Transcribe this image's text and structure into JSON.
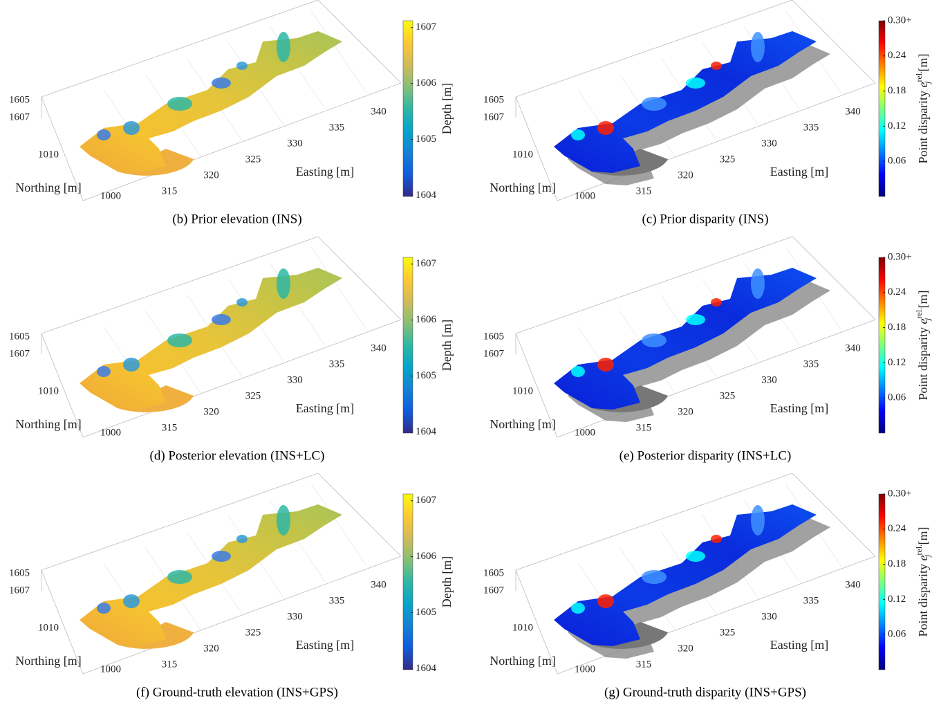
{
  "panels": [
    {
      "caption": "(b) Prior elevation (INS)",
      "colormap": "parula",
      "easting_label": "Easting [m]",
      "northing_label": "Northing [m]",
      "easting_ticks": [
        315,
        320,
        325,
        330,
        335,
        340
      ],
      "northing_ticks": [
        1000,
        1010
      ],
      "depth_ticks": [
        1605,
        1607
      ],
      "colorbar": {
        "label": "Depth",
        "unit": "[m]",
        "lim": [
          1603.98,
          1607.12
        ],
        "ticks": [
          1604,
          1605,
          1606,
          1607
        ]
      }
    },
    {
      "caption": "(c) Prior disparity (INS)",
      "colormap": "jet",
      "easting_label": "Easting [m]",
      "northing_label": "Northing [m]",
      "easting_ticks": [
        315,
        320,
        325,
        330,
        335,
        340
      ],
      "northing_ticks": [
        1000,
        1010
      ],
      "depth_ticks": [
        1605,
        1607
      ],
      "colorbar": {
        "label": "Point disparity",
        "symbol": "e",
        "symbol_sub": "j",
        "symbol_sup": "rel.",
        "unit": "[m]",
        "lim": [
          0,
          0.3
        ],
        "ticks": [
          0.06,
          0.12,
          0.18,
          0.24,
          {
            "value": 0.3,
            "label": "0.30+"
          }
        ]
      }
    },
    {
      "caption": "(d) Posterior elevation (INS+LC)",
      "colormap": "parula",
      "easting_label": "Easting [m]",
      "northing_label": "Northing [m]",
      "easting_ticks": [
        315,
        320,
        325,
        330,
        335,
        340
      ],
      "northing_ticks": [
        1000,
        1010
      ],
      "depth_ticks": [
        1605,
        1607
      ],
      "colorbar": {
        "label": "Depth",
        "unit": "[m]",
        "lim": [
          1603.98,
          1607.12
        ],
        "ticks": [
          1604,
          1605,
          1606,
          1607
        ]
      }
    },
    {
      "caption": "(e) Posterior disparity (INS+LC)",
      "colormap": "jet",
      "easting_label": "Easting [m]",
      "northing_label": "Northing [m]",
      "easting_ticks": [
        315,
        320,
        325,
        330,
        335,
        340
      ],
      "northing_ticks": [
        1000,
        1010
      ],
      "depth_ticks": [
        1605,
        1607
      ],
      "colorbar": {
        "label": "Point disparity",
        "symbol": "e",
        "symbol_sub": "j",
        "symbol_sup": "rel.",
        "unit": "[m]",
        "lim": [
          0,
          0.3
        ],
        "ticks": [
          0.06,
          0.12,
          0.18,
          0.24,
          {
            "value": 0.3,
            "label": "0.30+"
          }
        ]
      }
    },
    {
      "caption": "(f) Ground-truth elevation (INS+GPS)",
      "colormap": "parula",
      "easting_label": "Easting [m]",
      "northing_label": "Northing [m]",
      "easting_ticks": [
        315,
        320,
        325,
        330,
        335,
        340
      ],
      "northing_ticks": [
        1000,
        1010
      ],
      "depth_ticks": [
        1605,
        1607
      ],
      "colorbar": {
        "label": "Depth",
        "unit": "[m]",
        "lim": [
          1603.98,
          1607.12
        ],
        "ticks": [
          1604,
          1605,
          1606,
          1607
        ]
      }
    },
    {
      "caption": "(g) Ground-truth disparity (INS+GPS)",
      "colormap": "jet",
      "easting_label": "Easting [m]",
      "northing_label": "Northing [m]",
      "easting_ticks": [
        315,
        320,
        325,
        330,
        335,
        340
      ],
      "northing_ticks": [
        1000,
        1010
      ],
      "depth_ticks": [
        1605,
        1607
      ],
      "colorbar": {
        "label": "Point disparity",
        "symbol": "e",
        "symbol_sub": "j",
        "symbol_sup": "rel.",
        "unit": "[m]",
        "lim": [
          0,
          0.3
        ],
        "ticks": [
          0.06,
          0.12,
          0.18,
          0.24,
          {
            "value": 0.3,
            "label": "0.30+"
          }
        ]
      }
    }
  ]
}
